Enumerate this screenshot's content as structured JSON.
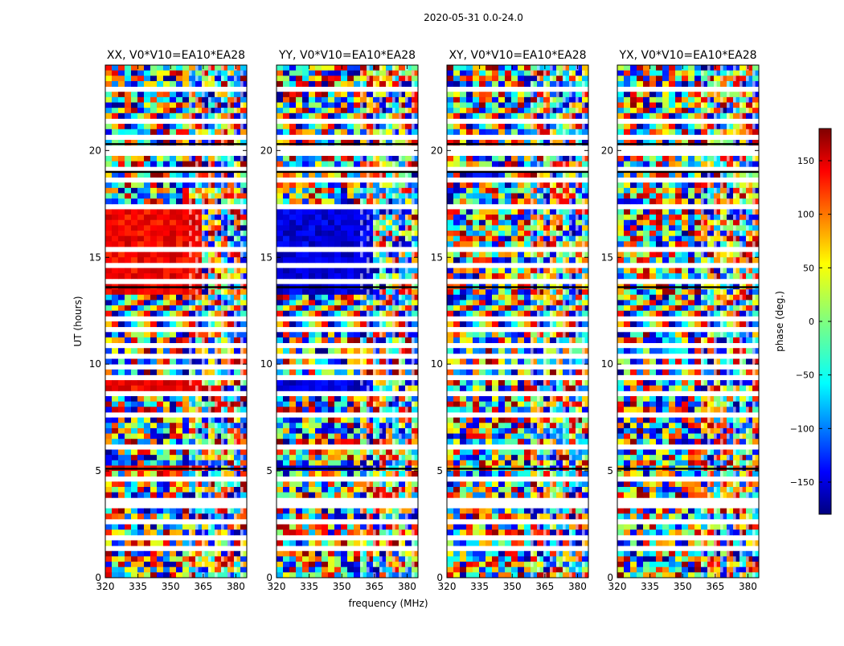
{
  "figure": {
    "suptitle": "2020-05-31 0.0-24.0"
  },
  "chart_data": {
    "type": "heatmap",
    "panels": [
      {
        "title": "XX, V0*V10=EA10*EA28",
        "coherent_band": "strong positive phase (red/orange) between ~13 and ~17 UT and near 5 UT, 9 UT"
      },
      {
        "title": "YY, V0*V10=EA10*EA28",
        "coherent_band": "strong negative phase (blue) between ~13 and ~17 UT and near 5 UT, 9 UT"
      },
      {
        "title": "XY, V0*V10=EA10*EA28",
        "coherent_band": "mostly noise-like phase"
      },
      {
        "title": "YX, V0*V10=EA10*EA28",
        "coherent_band": "mostly noise-like phase"
      }
    ],
    "x": {
      "label": "frequency (MHz)",
      "range": [
        320,
        385
      ],
      "ticks": [
        320,
        335,
        350,
        365,
        380
      ]
    },
    "y": {
      "label": "UT (hours)",
      "range": [
        0,
        24
      ],
      "ticks": [
        0,
        5,
        10,
        15,
        20
      ]
    },
    "colorbar": {
      "label": "phase (deg.)",
      "range": [
        -180,
        180
      ],
      "ticks": [
        -150,
        -100,
        -50,
        0,
        50,
        100,
        150
      ],
      "tick_labels": [
        "−150",
        "−100",
        "−50",
        "0",
        "50",
        "100",
        "150"
      ],
      "colormap": "jet",
      "colors": [
        "#00007f",
        "#0000ff",
        "#007fff",
        "#00ffff",
        "#7fff7f",
        "#ffff00",
        "#ff7f00",
        "#ff0000",
        "#7f0000"
      ]
    }
  }
}
